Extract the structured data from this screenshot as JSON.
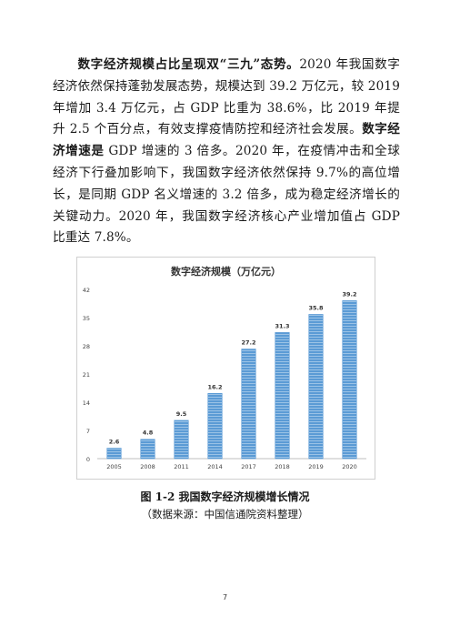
{
  "paragraph": {
    "h1": "数字经济规模占比呈现双“三九”态势。",
    "t1": "2020 年我国数字经济依然保持蓬勃发展态势，规模达到 39.2 万亿元，较 2019 年增加 3.4 万亿元，占 GDP 比重为 38.6%，比 2019 年提升 2.5 个百分点，有效支撑疫情防控和经济社会发展。",
    "h2": "数字经济增速是",
    "t2": " GDP 增速的 3 倍多。2020 年，在疫情冲击和全球经济下行叠加影响下，我国数字经济依然保持 9.7%的高位增长，是同期 GDP 名义增速的 3.2 倍多，成为稳定经济增长的关键动力。2020 年，我国数字经济核心产业增加值占 GDP 比重达 7.8%。"
  },
  "chart_data": {
    "type": "bar",
    "title": "数字经济规模（万亿元）",
    "categories": [
      "2005",
      "2008",
      "2011",
      "2014",
      "2017",
      "2018",
      "2019",
      "2020"
    ],
    "values": [
      2.6,
      4.8,
      9.5,
      16.2,
      27.2,
      31.3,
      35.8,
      39.2
    ],
    "value_labels": [
      "2.6",
      "4.8",
      "9.5",
      "16.2",
      "27.2",
      "31.3",
      "35.8",
      "39.2"
    ],
    "yticks": [
      0,
      7,
      14,
      21,
      28,
      35,
      42
    ],
    "ylim": [
      0,
      42
    ],
    "grid": false,
    "legend": "none",
    "bar_color": "#5b9bd5"
  },
  "figure": {
    "caption": "图 1-2 我国数字经济规模增长情况",
    "source": "（数据来源：中国信通院资料整理）"
  },
  "page_number": "7"
}
